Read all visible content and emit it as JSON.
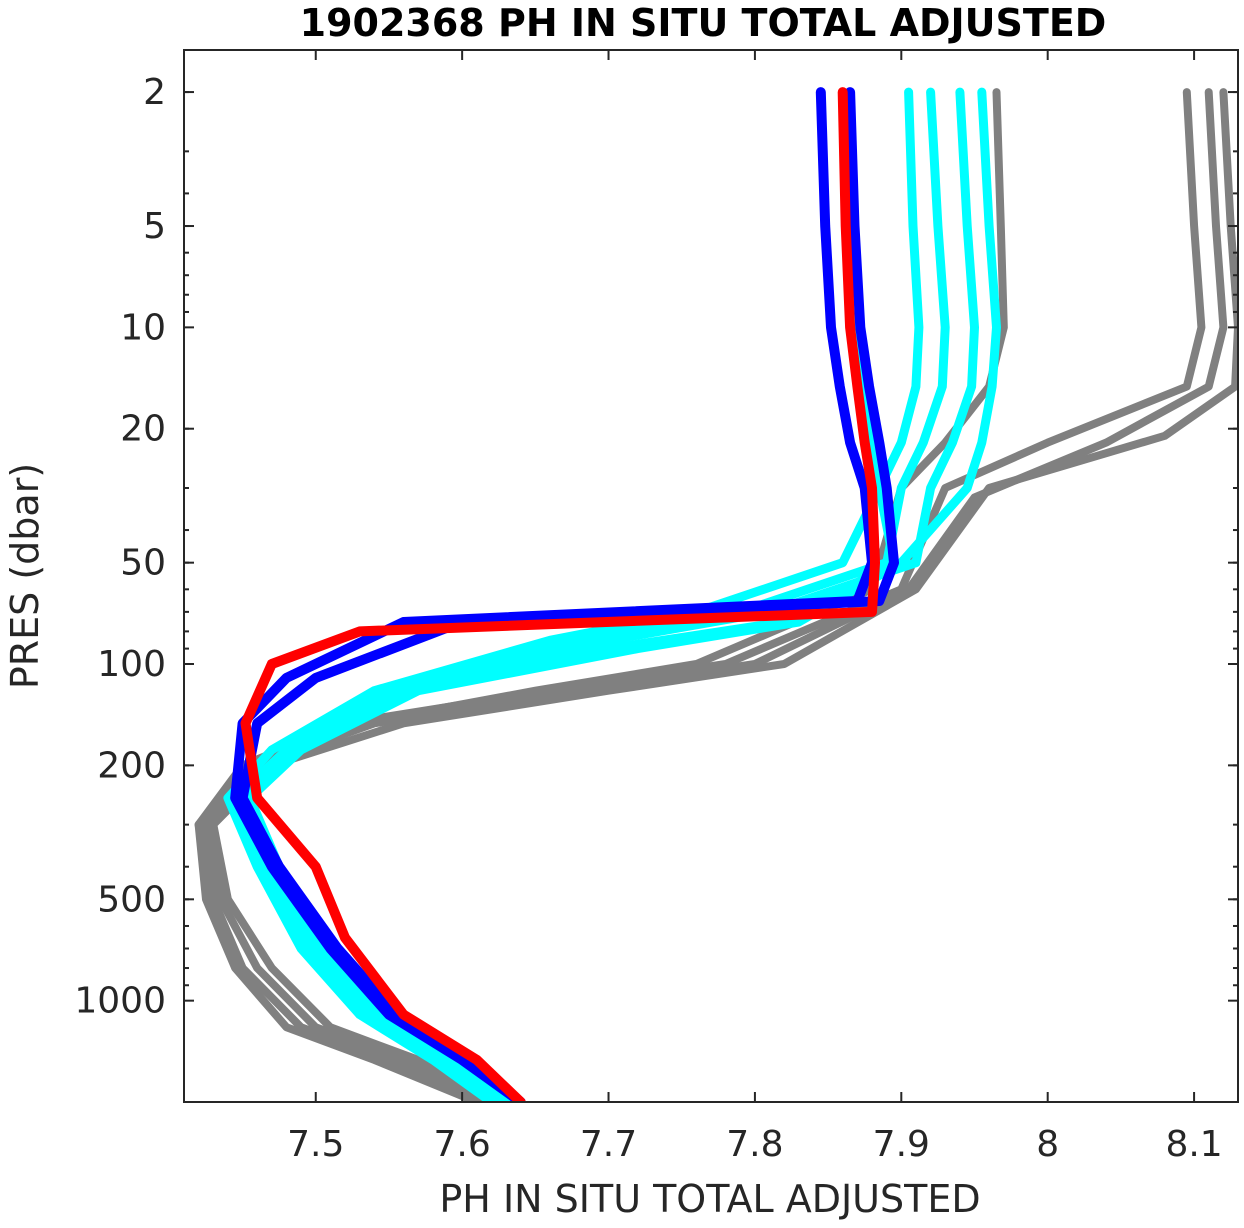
{
  "chart_data": {
    "type": "line",
    "title": "1902368  PH IN SITU TOTAL ADJUSTED",
    "xlabel": "PH IN SITU TOTAL ADJUSTED",
    "ylabel": "PRES (dbar)",
    "xlim": [
      7.41,
      8.13
    ],
    "ylim": [
      1.5,
      2000
    ],
    "y_scale": "log",
    "y_reversed": true,
    "grid": false,
    "legend": "none",
    "x_ticks": [
      7.5,
      7.6,
      7.7,
      7.8,
      7.9,
      8.0,
      8.1
    ],
    "x_tick_labels": [
      "7.5",
      "7.6",
      "7.7",
      "7.8",
      "7.9",
      "8",
      "8.1"
    ],
    "y_ticks": [
      2,
      5,
      10,
      20,
      50,
      100,
      200,
      500,
      1000
    ],
    "y_tick_labels": [
      "2",
      "5",
      "10",
      "20",
      "50",
      "100",
      "200",
      "500",
      "1000"
    ],
    "colors": {
      "gray": "#808080",
      "cyan": "#00ffff",
      "blue": "#0000ff",
      "red": "#ff0000"
    },
    "series": [
      {
        "color": "gray",
        "x": [
          8.095,
          8.1,
          8.105,
          8.095,
          8.0,
          7.93,
          7.9,
          7.78,
          7.66,
          7.52,
          7.45,
          7.42,
          7.43,
          7.45,
          7.49,
          7.55,
          7.62
        ],
        "y": [
          2,
          5,
          10,
          15,
          22,
          30,
          60,
          100,
          120,
          150,
          200,
          300,
          500,
          800,
          1200,
          1500,
          2000
        ]
      },
      {
        "color": "gray",
        "x": [
          8.11,
          8.115,
          8.12,
          8.11,
          8.04,
          7.95,
          7.905,
          7.8,
          7.68,
          7.54,
          7.46,
          7.425,
          7.435,
          7.46,
          7.5,
          7.56,
          7.625
        ],
        "y": [
          2,
          5,
          10,
          15,
          22,
          32,
          60,
          100,
          120,
          150,
          200,
          300,
          500,
          800,
          1200,
          1500,
          2000
        ]
      },
      {
        "color": "gray",
        "x": [
          8.12,
          8.125,
          8.13,
          8.128,
          8.08,
          7.96,
          7.91,
          7.82,
          7.7,
          7.56,
          7.47,
          7.43,
          7.44,
          7.47,
          7.51,
          7.57,
          7.63
        ],
        "y": [
          2,
          5,
          10,
          15,
          21,
          30,
          60,
          100,
          120,
          150,
          200,
          300,
          500,
          800,
          1200,
          1500,
          2000
        ]
      },
      {
        "color": "gray",
        "x": [
          7.965,
          7.968,
          7.97,
          7.96,
          7.93,
          7.9,
          7.88,
          7.76,
          7.65,
          7.53,
          7.455,
          7.42,
          7.425,
          7.445,
          7.48,
          7.54,
          7.61
        ],
        "y": [
          2,
          5,
          10,
          15,
          22,
          30,
          60,
          100,
          120,
          150,
          200,
          300,
          500,
          800,
          1200,
          1500,
          2000
        ]
      },
      {
        "color": "cyan",
        "x": [
          7.905,
          7.908,
          7.912,
          7.91,
          7.9,
          7.885,
          7.86,
          7.76,
          7.66,
          7.54,
          7.47,
          7.44,
          7.46,
          7.49,
          7.53,
          7.58,
          7.62
        ],
        "y": [
          2,
          5,
          10,
          15,
          22,
          30,
          50,
          70,
          85,
          120,
          180,
          250,
          400,
          700,
          1100,
          1500,
          2000
        ]
      },
      {
        "color": "cyan",
        "x": [
          7.92,
          7.925,
          7.93,
          7.928,
          7.915,
          7.9,
          7.89,
          7.79,
          7.68,
          7.55,
          7.48,
          7.445,
          7.465,
          7.495,
          7.535,
          7.585,
          7.625
        ],
        "y": [
          2,
          5,
          10,
          15,
          22,
          30,
          50,
          70,
          85,
          120,
          180,
          250,
          400,
          700,
          1100,
          1500,
          2000
        ]
      },
      {
        "color": "cyan",
        "x": [
          7.94,
          7.945,
          7.95,
          7.948,
          7.935,
          7.92,
          7.91,
          7.81,
          7.7,
          7.56,
          7.485,
          7.45,
          7.47,
          7.5,
          7.54,
          7.59,
          7.63
        ],
        "y": [
          2,
          5,
          10,
          15,
          22,
          30,
          50,
          70,
          85,
          120,
          180,
          250,
          400,
          700,
          1100,
          1500,
          2000
        ]
      },
      {
        "color": "cyan",
        "x": [
          7.955,
          7.96,
          7.965,
          7.962,
          7.955,
          7.945,
          7.9,
          7.83,
          7.72,
          7.57,
          7.49,
          7.455,
          7.475,
          7.505,
          7.545,
          7.595,
          7.635
        ],
        "y": [
          2,
          5,
          10,
          15,
          22,
          30,
          50,
          75,
          90,
          120,
          180,
          250,
          400,
          700,
          1100,
          1500,
          2000
        ]
      },
      {
        "color": "cyan",
        "x": [
          7.86,
          7.862,
          7.868,
          7.875,
          7.88,
          7.885,
          7.895,
          7.82,
          7.7,
          7.56,
          7.48,
          7.45,
          7.47,
          7.5,
          7.54,
          7.59,
          7.63
        ],
        "y": [
          2,
          5,
          10,
          15,
          22,
          30,
          50,
          75,
          90,
          120,
          180,
          250,
          400,
          700,
          1100,
          1500,
          2000
        ]
      },
      {
        "color": "blue",
        "x": [
          7.845,
          7.848,
          7.852,
          7.858,
          7.865,
          7.875,
          7.88,
          7.87,
          7.56,
          7.48,
          7.45,
          7.445,
          7.47,
          7.51,
          7.55,
          7.6,
          7.64
        ],
        "y": [
          2,
          5,
          10,
          15,
          22,
          30,
          50,
          65,
          75,
          110,
          150,
          250,
          400,
          700,
          1100,
          1500,
          2000
        ]
      },
      {
        "color": "blue",
        "x": [
          7.865,
          7.868,
          7.872,
          7.878,
          7.885,
          7.89,
          7.895,
          7.885,
          7.6,
          7.5,
          7.46,
          7.45,
          7.475,
          7.515,
          7.555,
          7.605,
          7.64
        ],
        "y": [
          2,
          5,
          10,
          15,
          22,
          30,
          50,
          65,
          75,
          110,
          150,
          250,
          400,
          700,
          1100,
          1500,
          2000
        ]
      },
      {
        "color": "red",
        "x": [
          7.86,
          7.862,
          7.865,
          7.87,
          7.875,
          7.88,
          7.882,
          7.88,
          7.53,
          7.47,
          7.452,
          7.46,
          7.5,
          7.52,
          7.56,
          7.61,
          7.64
        ],
        "y": [
          2,
          5,
          10,
          15,
          22,
          30,
          50,
          70,
          80,
          100,
          150,
          250,
          400,
          650,
          1100,
          1500,
          2000
        ]
      }
    ]
  }
}
